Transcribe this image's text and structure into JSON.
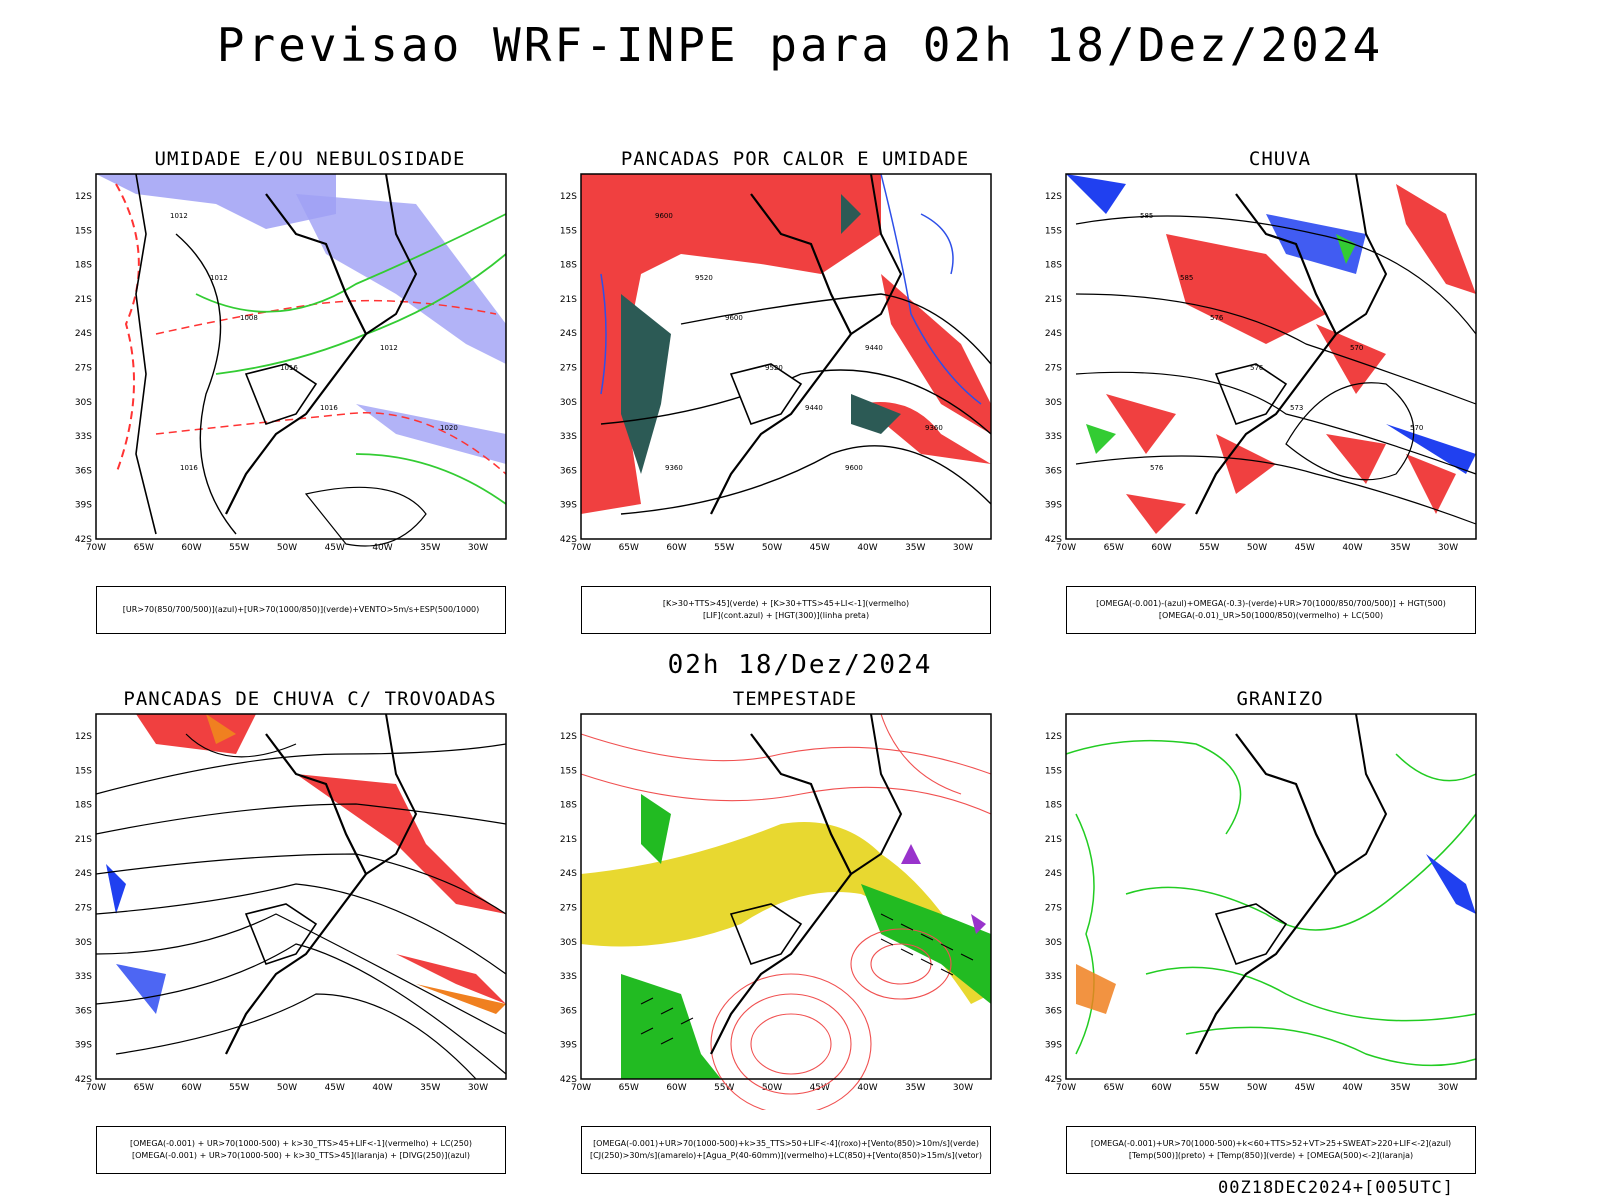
{
  "title": "Previsao WRF-INPE  para 02h 18/Dez/2024",
  "mid_date": "02h 18/Dez/2024",
  "footer": "00Z18DEC2024+[005UTC]",
  "axis": {
    "lat_labels": [
      "12S",
      "15S",
      "18S",
      "21S",
      "24S",
      "27S",
      "30S",
      "33S",
      "36S",
      "39S",
      "42S"
    ],
    "lon_labels": [
      "70W",
      "65W",
      "60W",
      "55W",
      "50W",
      "45W",
      "40W",
      "35W",
      "30W"
    ]
  },
  "panels": [
    {
      "id": "p1",
      "title": "UMIDADE E/OU NEBULOSIDADE",
      "legend": [
        "[UR>70(850/700/500)](azul)+[UR>70(1000/850)](verde)+VENTO>5m/s+ESP(500/1000)"
      ],
      "contour_labels": [
        "1012",
        "1012",
        "1008",
        "1016",
        "1016",
        "1012",
        "1020",
        "1016"
      ],
      "colors": {
        "fill": "#9fa0f5",
        "green": "#33cc33",
        "red": "#ff3333",
        "dark": "#000000"
      }
    },
    {
      "id": "p2",
      "title": "PANCADAS POR CALOR E UMIDADE",
      "legend": [
        "[K>30+TTS>45](verde) + [K>30+TTS>45+LI<-1](vermelho)",
        "[LIF](cont.azul) + [HGT(300)](linha preta)"
      ],
      "contour_labels": [
        "9600",
        "9520",
        "9600",
        "9520",
        "9440",
        "9440",
        "9360",
        "9360",
        "9600"
      ],
      "colors": {
        "red": "#f04040",
        "teal": "#2c5a55",
        "blue": "#2e4fe8"
      }
    },
    {
      "id": "p3",
      "title": "CHUVA",
      "legend": [
        "[OMEGA(-0.001)-(azul)+OMEGA(-0.3)-(verde)+UR>70(1000/850/700/500)] + HGT(500)",
        "[OMEGA(-0.01)_UR>50(1000/850)(vermelho) + LC(500)"
      ],
      "contour_labels": [
        "585",
        "585",
        "576",
        "576",
        "573",
        "570",
        "570",
        "576"
      ],
      "colors": {
        "red": "#f04040",
        "blue": "#2040f0",
        "green": "#33cc33"
      }
    },
    {
      "id": "p4",
      "title": "PANCADAS DE CHUVA C/ TROVOADAS",
      "legend": [
        "[OMEGA(-0.001) + UR>70(1000-500) + k>30_TTS>45+LIF<-1](vermelho) + LC(250)",
        "[OMEGA(-0.001) + UR>70(1000-500) + k>30_TTS>45](laranja) + [DIVG(250)](azul)"
      ],
      "colors": {
        "red": "#f04040",
        "orange": "#f08020",
        "blue": "#2040f0"
      }
    },
    {
      "id": "p5",
      "title": "TEMPESTADE",
      "legend": [
        "[OMEGA(-0.001)+UR>70(1000-500)+k>35_TTS>50+LIF<-4](roxo)+[Vento(850)>10m/s](verde)",
        "[CJ(250)>30m/s](amarelo)+[Agua_P(40-60mm)](vermelho)+LC(850)+[Vento(850)>15m/s](vetor)"
      ],
      "colors": {
        "yellow": "#e8d830",
        "green": "#22bb22",
        "red": "#f05050",
        "purple": "#9933cc"
      }
    },
    {
      "id": "p6",
      "title": "GRANIZO",
      "legend": [
        "[OMEGA(-0.001)+UR>70(1000-500)+k<60+TTS>52+VT>25+SWEAT>220+LIF<-2](azul)",
        "[Temp(500)](preto) + [Temp(850)](verde) + [OMEGA(500)<-2](laranja)"
      ],
      "colors": {
        "green": "#22cc22",
        "blue": "#2040f0",
        "orange": "#f08020"
      }
    }
  ]
}
